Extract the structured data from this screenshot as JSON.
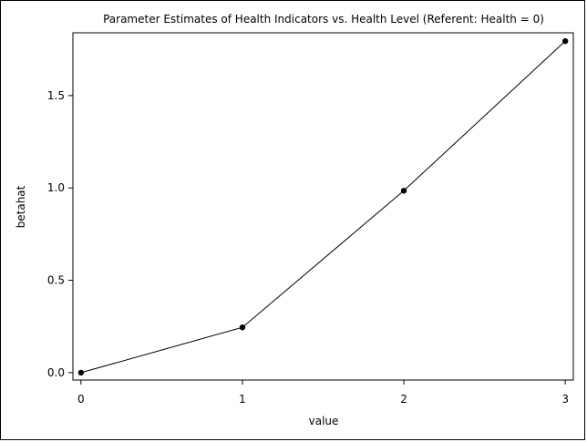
{
  "chart_data": {
    "type": "line",
    "title": "Parameter Estimates of Health Indicators vs. Health Level (Referent: Health = 0)",
    "xlabel": "value",
    "ylabel": "betahat",
    "x": [
      0,
      1,
      2,
      3
    ],
    "series": [
      {
        "values": [
          0.0,
          0.245,
          0.985,
          1.795
        ]
      }
    ],
    "xlim": [
      -0.05,
      3.05
    ],
    "ylim": [
      -0.04,
      1.84
    ],
    "xticks": [
      0,
      1,
      2,
      3
    ],
    "yticks": [
      0.0,
      0.5,
      1.0,
      1.5
    ],
    "xtick_labels": [
      "0",
      "1",
      "2",
      "3"
    ],
    "ytick_labels": [
      "0.0",
      "0.5",
      "1.0",
      "1.5"
    ],
    "grid": false,
    "marker": "filled-circle",
    "colors": {
      "line": "#000000",
      "marker": "#000000",
      "axes": "#000000"
    }
  }
}
